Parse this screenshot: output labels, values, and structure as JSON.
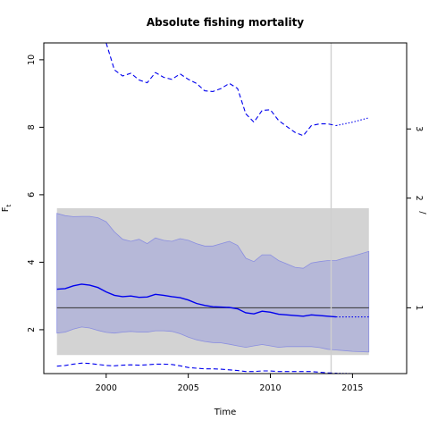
{
  "chart_data": {
    "type": "line",
    "title": "Absolute fishing mortality",
    "xlabel": "Time",
    "ylabel_main": "F",
    "ylabel_sub": "t",
    "xlim": [
      1996.2,
      2018.3
    ],
    "ylim": [
      0.7,
      10.5
    ],
    "xticks": [
      2000,
      2005,
      2010,
      2015
    ],
    "yticks": [
      2,
      4,
      6,
      8,
      10
    ],
    "right_axis": {
      "ticks": [
        1,
        2,
        3
      ],
      "tick_positions_left_units": [
        2.65,
        5.9,
        7.95
      ],
      "label_partial": "/"
    },
    "grey_band": {
      "x": [
        1997,
        2016
      ],
      "y": [
        1.25,
        5.6
      ]
    },
    "reference_line": {
      "y": 2.65,
      "x": [
        1997,
        2016
      ]
    },
    "vertical_line": {
      "x": 2013.7
    },
    "ci_band": {
      "x": [
        1997,
        1997.5,
        1998,
        1998.5,
        1999,
        1999.5,
        2000,
        2000.5,
        2001,
        2001.5,
        2002,
        2002.5,
        2003,
        2003.5,
        2004,
        2004.5,
        2005,
        2005.5,
        2006,
        2006.5,
        2007,
        2007.5,
        2008,
        2008.5,
        2009,
        2009.5,
        2010,
        2010.5,
        2011,
        2011.5,
        2012,
        2012.5,
        2013,
        2013.5,
        2014,
        2014.5,
        2015,
        2015.5,
        2016
      ],
      "upper": [
        5.45,
        5.38,
        5.35,
        5.36,
        5.36,
        5.32,
        5.2,
        4.9,
        4.68,
        4.62,
        4.68,
        4.55,
        4.72,
        4.65,
        4.62,
        4.7,
        4.65,
        4.55,
        4.48,
        4.48,
        4.55,
        4.62,
        4.5,
        4.12,
        4.02,
        4.22,
        4.22,
        4.05,
        3.95,
        3.85,
        3.82,
        3.98,
        4.02,
        4.05,
        4.05,
        4.12,
        4.18,
        4.25,
        4.32
      ],
      "lower": [
        1.9,
        1.93,
        2.02,
        2.08,
        2.05,
        1.98,
        1.92,
        1.9,
        1.93,
        1.95,
        1.93,
        1.93,
        1.97,
        1.97,
        1.95,
        1.88,
        1.78,
        1.7,
        1.65,
        1.62,
        1.61,
        1.57,
        1.52,
        1.48,
        1.52,
        1.56,
        1.52,
        1.48,
        1.5,
        1.5,
        1.5,
        1.5,
        1.47,
        1.42,
        1.4,
        1.38,
        1.36,
        1.35,
        1.34
      ]
    },
    "series": [
      {
        "role": "estimate",
        "style": "solid",
        "x": [
          1997,
          1997.5,
          1998,
          1998.5,
          1999,
          1999.5,
          2000,
          2000.5,
          2001,
          2001.5,
          2002,
          2002.5,
          2003,
          2003.5,
          2004,
          2004.5,
          2005,
          2005.5,
          2006,
          2006.5,
          2007,
          2007.5,
          2008,
          2008.5,
          2009,
          2009.5,
          2010,
          2010.5,
          2011,
          2011.5,
          2012,
          2012.5,
          2013,
          2013.5,
          2014
        ],
        "y": [
          3.2,
          3.22,
          3.3,
          3.35,
          3.32,
          3.25,
          3.12,
          3.02,
          2.98,
          3.0,
          2.96,
          2.97,
          3.05,
          3.02,
          2.98,
          2.95,
          2.88,
          2.78,
          2.72,
          2.68,
          2.67,
          2.66,
          2.62,
          2.5,
          2.47,
          2.55,
          2.52,
          2.46,
          2.44,
          2.42,
          2.4,
          2.44,
          2.42,
          2.4,
          2.38
        ]
      },
      {
        "role": "estimate-forecast",
        "style": "dotted",
        "x": [
          2014,
          2015,
          2016
        ],
        "y": [
          2.38,
          2.38,
          2.38
        ]
      },
      {
        "role": "upper-bound",
        "style": "dashed",
        "x": [
          2000,
          2000.5,
          2001,
          2001.5,
          2002,
          2002.5,
          2003,
          2003.5,
          2004,
          2004.5,
          2005,
          2005.5,
          2006,
          2006.5,
          2007,
          2007.5,
          2008,
          2008.5,
          2009,
          2009.5,
          2010,
          2010.5,
          2011,
          2011.5,
          2012,
          2012.5,
          2013,
          2013.5,
          2014
        ],
        "y": [
          10.5,
          9.7,
          9.52,
          9.6,
          9.4,
          9.32,
          9.62,
          9.48,
          9.42,
          9.58,
          9.42,
          9.3,
          9.08,
          9.06,
          9.15,
          9.3,
          9.15,
          8.4,
          8.15,
          8.5,
          8.52,
          8.2,
          8.02,
          7.85,
          7.75,
          8.05,
          8.1,
          8.1,
          8.05
        ]
      },
      {
        "role": "upper-bound-forecast",
        "style": "dotted",
        "x": [
          2014,
          2015,
          2016
        ],
        "y": [
          8.05,
          8.15,
          8.28
        ]
      },
      {
        "role": "lower-bound",
        "style": "dashed",
        "x": [
          1997,
          1997.5,
          1998,
          1998.5,
          1999,
          1999.5,
          2000,
          2000.5,
          2001,
          2001.5,
          2002,
          2002.5,
          2003,
          2003.5,
          2004,
          2004.5,
          2005,
          2005.5,
          2006,
          2006.5,
          2007,
          2007.5,
          2008,
          2008.5,
          2009,
          2009.5,
          2010,
          2010.5,
          2011,
          2011.5,
          2012,
          2012.5,
          2013,
          2013.5,
          2014
        ],
        "y": [
          0.92,
          0.94,
          0.98,
          1.01,
          1.0,
          0.97,
          0.94,
          0.93,
          0.95,
          0.96,
          0.95,
          0.96,
          0.98,
          0.98,
          0.97,
          0.93,
          0.88,
          0.86,
          0.84,
          0.84,
          0.83,
          0.81,
          0.79,
          0.76,
          0.76,
          0.78,
          0.78,
          0.76,
          0.76,
          0.76,
          0.76,
          0.76,
          0.74,
          0.72,
          0.71
        ]
      },
      {
        "role": "lower-bound-forecast",
        "style": "dotted",
        "x": [
          2014,
          2015,
          2016
        ],
        "y": [
          0.71,
          0.7,
          0.7
        ]
      }
    ],
    "grid": false,
    "colors": {
      "series": "#0000ee",
      "ci_fill": "#b6b8d8",
      "ci_edge": "#8a8ee0",
      "grey_band": "#d3d3d3",
      "reference": "#333333",
      "vertical": "#cfcfcf"
    }
  }
}
